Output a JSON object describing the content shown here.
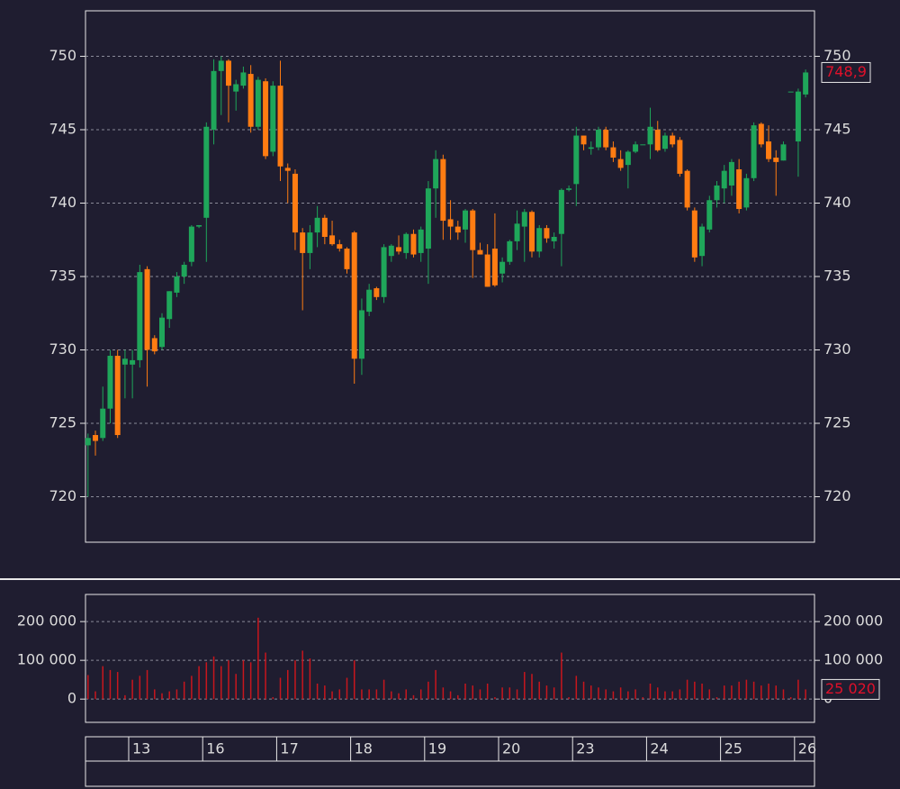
{
  "chart_data": {
    "type": "candlestick",
    "categories": [
      null,
      null,
      null,
      null,
      null,
      null,
      "13",
      null,
      null,
      null,
      null,
      null,
      null,
      null,
      null,
      null,
      "16",
      null,
      null,
      null,
      null,
      null,
      null,
      null,
      null,
      null,
      "17",
      null,
      null,
      null,
      null,
      null,
      null,
      null,
      null,
      null,
      "18",
      null,
      null,
      null,
      null,
      null,
      null,
      null,
      null,
      null,
      "19",
      null,
      null,
      null,
      null,
      null,
      null,
      null,
      null,
      null,
      "20",
      null,
      null,
      null,
      null,
      null,
      null,
      null,
      null,
      null,
      "23",
      null,
      null,
      null,
      null,
      null,
      null,
      null,
      null,
      null,
      "24",
      null,
      null,
      null,
      null,
      null,
      null,
      null,
      null,
      null,
      "25",
      null,
      null,
      null,
      null,
      null,
      null,
      null,
      null,
      null,
      "26",
      null
    ],
    "open": [
      723.5,
      724.2,
      724,
      726,
      729.6,
      729,
      729,
      729.3,
      735.5,
      730.8,
      730.2,
      732.1,
      733.9,
      735,
      736,
      738.4,
      739,
      745,
      749,
      749.7,
      747.6,
      748,
      748.8,
      745.2,
      748.3,
      743.5,
      748,
      742.4,
      742,
      738,
      736.6,
      738,
      739,
      737.8,
      737.2,
      736.9,
      738,
      729.4,
      732.6,
      734.2,
      733.6,
      736.4,
      737,
      736.6,
      737.9,
      736.6,
      736.9,
      741,
      743,
      738.9,
      738.4,
      738.2,
      739.5,
      736.8,
      736.5,
      736.9,
      735.2,
      736,
      737.4,
      738.4,
      739.4,
      736.7,
      738.3,
      737.4,
      737.9,
      740.9,
      741.3,
      744.6,
      743.7,
      743.8,
      745,
      743.8,
      743,
      742.6,
      743.5,
      744,
      744,
      745,
      743.7,
      744.6,
      744.3,
      742.2,
      739.5,
      736.4,
      738.2,
      740.2,
      741,
      741.2,
      742.3,
      739.7,
      741.7,
      745.4,
      744.2,
      743.1,
      742.9,
      747.6,
      744.2,
      747.4
    ],
    "high": [
      724.3,
      724.5,
      727.5,
      730,
      730,
      730,
      730,
      735.8,
      735.7,
      731,
      732.5,
      734,
      735.3,
      736,
      738.5,
      738.5,
      745.5,
      749.8,
      750,
      749.8,
      748.4,
      749.3,
      749.4,
      748.6,
      748.5,
      748.3,
      749.7,
      742.7,
      742.3,
      738.3,
      738.5,
      739.8,
      739.2,
      738.8,
      737.5,
      737,
      738.1,
      733.5,
      734.5,
      734.3,
      737.2,
      737.2,
      737.8,
      738,
      738.2,
      738.4,
      741.5,
      743.6,
      743.3,
      740.2,
      738.8,
      739.6,
      739.6,
      737.3,
      737.2,
      739.3,
      736.3,
      737.5,
      739.5,
      739.6,
      739.5,
      738.5,
      738.5,
      738,
      741,
      741.2,
      745.2,
      744.6,
      744.2,
      745.2,
      745.2,
      744.2,
      743.6,
      743.6,
      744.2,
      744,
      746.5,
      745.6,
      744.8,
      744.8,
      744.5,
      742.3,
      739.7,
      738.6,
      740.5,
      741.5,
      742.6,
      743,
      743,
      742,
      745.5,
      745.5,
      745.3,
      743.6,
      744.2,
      747.6,
      747.8,
      749.1
    ],
    "low": [
      720,
      722.8,
      723.8,
      725,
      724,
      726.7,
      726.7,
      728.8,
      727.5,
      729.7,
      730,
      731.5,
      733.6,
      734.5,
      735.7,
      738.3,
      736,
      744,
      746,
      745.5,
      746.3,
      747.8,
      744.8,
      745,
      743,
      743.2,
      741.5,
      740,
      736.8,
      732.7,
      735.5,
      737,
      737.2,
      737.1,
      736.7,
      735.2,
      727.7,
      728.3,
      732.3,
      733.4,
      733.2,
      736,
      736.5,
      736.2,
      736.3,
      736,
      734.5,
      739,
      737.5,
      737.5,
      737.5,
      737.3,
      734.9,
      736.5,
      734.3,
      734.3,
      734.6,
      735.8,
      736.8,
      736,
      736.3,
      736.3,
      737.3,
      736.9,
      735.7,
      740.8,
      739.8,
      743.6,
      743.3,
      743.6,
      743.6,
      742.8,
      742.2,
      741,
      743.4,
      744,
      743,
      743.5,
      743.5,
      743.8,
      741.8,
      739.5,
      736,
      735.7,
      738,
      739.7,
      740,
      740.5,
      739.3,
      739.5,
      741.5,
      743.8,
      742.8,
      740.5,
      742.9,
      747.6,
      741.8,
      747.2
    ],
    "close": [
      724,
      723.8,
      726,
      729.6,
      724.2,
      729.4,
      729.3,
      735.3,
      730,
      729.9,
      732.2,
      734,
      735,
      735.8,
      738.4,
      738.5,
      745.2,
      749,
      749.7,
      748,
      748.1,
      748.9,
      745.2,
      748.4,
      743.2,
      748,
      742.5,
      742.2,
      738,
      736.6,
      738,
      739,
      737.7,
      737.2,
      736.9,
      735.5,
      729.4,
      732.7,
      734.1,
      733.6,
      737,
      737.1,
      736.7,
      737.9,
      736.5,
      738.2,
      741,
      743,
      738.8,
      738.4,
      738,
      739.5,
      736.8,
      736.5,
      734.3,
      734.4,
      736,
      737.4,
      738.6,
      739.4,
      736.7,
      738.3,
      737.6,
      737.7,
      740.9,
      741,
      744.6,
      744,
      743.8,
      745,
      743.8,
      743.1,
      742.4,
      743.5,
      744,
      744,
      745.2,
      743.6,
      744.6,
      744,
      742,
      739.7,
      736.3,
      738.4,
      740.2,
      741.2,
      742.2,
      742.8,
      739.6,
      741.7,
      745.3,
      744,
      743,
      742.8,
      744,
      747.6,
      747.6,
      748.9
    ],
    "volume": [
      62000,
      20000,
      85000,
      75000,
      70000,
      10000,
      50000,
      60000,
      75000,
      25000,
      15000,
      20000,
      25000,
      45000,
      60000,
      85000,
      95000,
      110000,
      85000,
      100000,
      65000,
      100000,
      95000,
      210000,
      120000,
      5000,
      55000,
      75000,
      100000,
      125000,
      105000,
      40000,
      35000,
      20000,
      25000,
      55000,
      100000,
      25000,
      25000,
      25000,
      50000,
      20000,
      15000,
      25000,
      10000,
      25000,
      45000,
      75000,
      30000,
      20000,
      10000,
      40000,
      35000,
      25000,
      40000,
      5000,
      30000,
      30000,
      25000,
      70000,
      65000,
      45000,
      35000,
      30000,
      120000,
      5000,
      60000,
      45000,
      35000,
      30000,
      25000,
      20000,
      30000,
      20000,
      25000,
      5000,
      40000,
      30000,
      20000,
      20000,
      25000,
      50000,
      45000,
      40000,
      25000,
      5000,
      35000,
      35000,
      45000,
      50000,
      45000,
      35000,
      40000,
      35000,
      25000,
      5000,
      50000,
      25020
    ],
    "up_color": "#1fa65a",
    "down_color": "#ff7c12",
    "volume_color": "#c8161d",
    "label_color": "#e0102a",
    "ylim": [
      716.9,
      753.1
    ],
    "yticks": [
      720,
      725,
      730,
      735,
      740,
      745,
      750
    ],
    "volume_ylim": [
      -60000,
      270000
    ],
    "volume_yticks": [
      0,
      {
        "value": 100000,
        "label": "100 000"
      },
      {
        "value": 200000,
        "label": "200 000"
      }
    ],
    "close_label": "748,9",
    "volume_label": "25 020",
    "grid": true
  }
}
